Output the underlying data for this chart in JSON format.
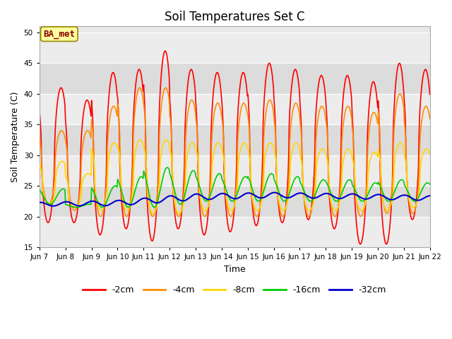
{
  "title": "Soil Temperatures Set C",
  "xlabel": "Time",
  "ylabel": "Soil Temperature (C)",
  "ylim": [
    15,
    51
  ],
  "yticks": [
    15,
    20,
    25,
    30,
    35,
    40,
    45,
    50
  ],
  "x_labels": [
    "Jun 7",
    "Jun 8",
    "Jun 9",
    "Jun 10",
    "Jun 11",
    "Jun 12",
    "Jun 13",
    "Jun 14",
    "Jun 15",
    "Jun 16",
    "Jun 17",
    "Jun 18",
    "Jun 19",
    "Jun 20",
    "Jun 21",
    "Jun 22"
  ],
  "annotation_text": "BA_met",
  "annotation_color": "#8B0000",
  "annotation_bg": "#FFFFA0",
  "series_colors": [
    "#FF0000",
    "#FF8C00",
    "#FFD700",
    "#00CC00",
    "#0000CC"
  ],
  "series_labels": [
    "-2cm",
    "-4cm",
    "-8cm",
    "-16cm",
    "-32cm"
  ],
  "n_days": 15,
  "points_per_day": 48,
  "band_colors": [
    "#E8E8E8",
    "#D8D8D8"
  ],
  "bg_color": "#E8E8E8"
}
